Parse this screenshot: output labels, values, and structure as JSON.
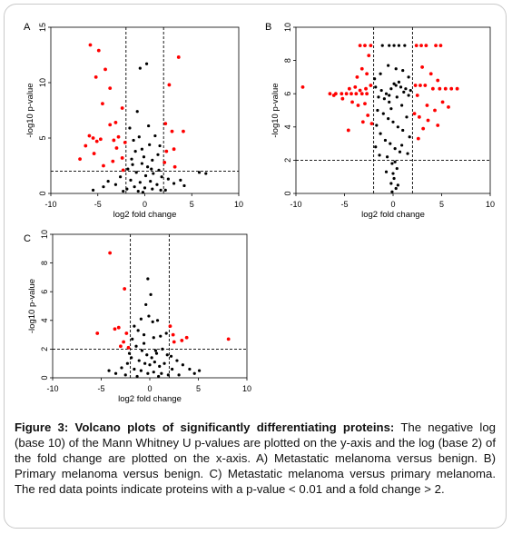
{
  "figure": {
    "caption_title": "Figure 3: Volcano plots of significantly differentiating proteins:",
    "caption_body": " The negative log (base 10) of the Mann Whitney U p-values are plotted on the y-axis and the log (base 2) of the fold change are plotted on the x-axis. A) Metastatic melanoma versus benign. B) Primary melanoma versus benign. C) Metastatic melanoma versus primary melanoma. The red data points indicate proteins with a p-value < 0.01 and a fold change > 2.",
    "colors": {
      "significant": "#ff0000",
      "other": "#000000",
      "threshold": "#000000"
    }
  },
  "chart_data": [
    {
      "type": "scatter",
      "panel_label": "A",
      "xlabel": "log2 fold change",
      "ylabel": "-log10 p-value",
      "xlim": [
        -10,
        10
      ],
      "ylim": [
        0,
        15
      ],
      "xticks": [
        -10,
        -5,
        0,
        5,
        10
      ],
      "yticks": [
        0,
        5,
        10,
        15
      ],
      "thresholds": {
        "x": [
          -2,
          2
        ],
        "y": 2
      },
      "significant": [
        [
          -5.8,
          13.4
        ],
        [
          -5.2,
          10.5
        ],
        [
          -4.9,
          12.9
        ],
        [
          -4.2,
          11.2
        ],
        [
          -4.5,
          8.1
        ],
        [
          -3.7,
          9.5
        ],
        [
          3.6,
          12.3
        ],
        [
          2.6,
          9.8
        ],
        [
          -5.9,
          5.2
        ],
        [
          -5.5,
          5.0
        ],
        [
          -6.3,
          4.3
        ],
        [
          -6.9,
          3.1
        ],
        [
          -5.1,
          4.7
        ],
        [
          -4.7,
          4.9
        ],
        [
          -3.7,
          6.2
        ],
        [
          -3.1,
          6.4
        ],
        [
          -3.3,
          4.8
        ],
        [
          -2.4,
          7.7
        ],
        [
          -2.8,
          5.1
        ],
        [
          -4.4,
          2.5
        ],
        [
          -3.4,
          2.9
        ],
        [
          -2.4,
          3.2
        ],
        [
          -2.1,
          4.6
        ],
        [
          2.2,
          6.3
        ],
        [
          2.9,
          5.6
        ],
        [
          4.1,
          5.6
        ],
        [
          2.3,
          3.8
        ],
        [
          3.1,
          4.0
        ],
        [
          2.1,
          2.8
        ],
        [
          3.2,
          2.4
        ],
        [
          -2.3,
          2.1
        ],
        [
          -5.4,
          3.6
        ],
        [
          -3.0,
          4.1
        ]
      ],
      "other": [
        [
          -1.6,
          5.9
        ],
        [
          -0.8,
          7.4
        ],
        [
          -0.5,
          11.3
        ],
        [
          0.2,
          11.7
        ],
        [
          -1.2,
          4.8
        ],
        [
          -0.6,
          5.1
        ],
        [
          0.5,
          4.4
        ],
        [
          1.1,
          5.2
        ],
        [
          1.4,
          3.5
        ],
        [
          -1.4,
          3.1
        ],
        [
          0.8,
          3.0
        ],
        [
          -0.3,
          2.7
        ],
        [
          0.3,
          2.4
        ],
        [
          1.5,
          2.1
        ],
        [
          -1.8,
          2.2
        ],
        [
          -0.9,
          1.9
        ],
        [
          0.1,
          1.6
        ],
        [
          0.9,
          1.8
        ],
        [
          1.8,
          1.5
        ],
        [
          -1.5,
          1.2
        ],
        [
          -0.5,
          1.0
        ],
        [
          0.6,
          1.1
        ],
        [
          1.3,
          0.8
        ],
        [
          -1.1,
          0.6
        ],
        [
          0.0,
          0.5
        ],
        [
          0.8,
          0.4
        ],
        [
          1.7,
          0.3
        ],
        [
          -0.7,
          0.2
        ],
        [
          -1.9,
          0.4
        ],
        [
          -0.2,
          0.1
        ],
        [
          2.5,
          1.3
        ],
        [
          3.1,
          0.9
        ],
        [
          3.8,
          1.2
        ],
        [
          4.2,
          0.7
        ],
        [
          5.8,
          1.9
        ],
        [
          6.5,
          1.8
        ],
        [
          -2.6,
          1.5
        ],
        [
          -3.1,
          0.8
        ],
        [
          -3.9,
          1.1
        ],
        [
          -4.4,
          0.6
        ],
        [
          -5.5,
          0.3
        ],
        [
          -2.3,
          0.2
        ],
        [
          2.2,
          0.3
        ],
        [
          -1.0,
          3.8
        ],
        [
          0.4,
          6.1
        ],
        [
          -0.3,
          4.0
        ],
        [
          1.6,
          4.3
        ],
        [
          -1.3,
          2.6
        ],
        [
          0.7,
          2.2
        ],
        [
          -0.1,
          3.3
        ]
      ]
    },
    {
      "type": "scatter",
      "panel_label": "B",
      "xlabel": "log2 fold change",
      "ylabel": "-log10 p-value",
      "xlim": [
        -10,
        10
      ],
      "ylim": [
        0,
        10
      ],
      "xticks": [
        -10,
        -5,
        0,
        5,
        10
      ],
      "yticks": [
        0,
        2,
        4,
        6,
        8,
        10
      ],
      "thresholds": {
        "x": [
          -2,
          2
        ],
        "y": 2
      },
      "significant": [
        [
          -9.3,
          6.4
        ],
        [
          -6.5,
          6.0
        ],
        [
          -5.9,
          6.0
        ],
        [
          -5.3,
          6.0
        ],
        [
          -4.8,
          6.0
        ],
        [
          -4.3,
          6.0
        ],
        [
          -3.8,
          6.0
        ],
        [
          -3.2,
          6.0
        ],
        [
          -2.7,
          6.0
        ],
        [
          -4.5,
          6.3
        ],
        [
          -3.9,
          6.4
        ],
        [
          -3.4,
          6.2
        ],
        [
          -2.8,
          6.3
        ],
        [
          -2.3,
          6.5
        ],
        [
          -3.6,
          5.3
        ],
        [
          -2.9,
          5.4
        ],
        [
          -4.2,
          5.5
        ],
        [
          -2.6,
          4.7
        ],
        [
          -3.1,
          4.3
        ],
        [
          -4.6,
          3.8
        ],
        [
          -2.2,
          4.2
        ],
        [
          -3.2,
          7.5
        ],
        [
          -2.7,
          7.2
        ],
        [
          -3.7,
          7.0
        ],
        [
          -2.5,
          8.3
        ],
        [
          -3.4,
          8.9
        ],
        [
          -2.9,
          8.9
        ],
        [
          -2.3,
          8.9
        ],
        [
          2.4,
          8.9
        ],
        [
          2.9,
          8.9
        ],
        [
          3.4,
          8.9
        ],
        [
          4.4,
          8.9
        ],
        [
          4.9,
          8.9
        ],
        [
          2.3,
          6.5
        ],
        [
          2.8,
          6.5
        ],
        [
          3.3,
          6.5
        ],
        [
          4.1,
          6.3
        ],
        [
          4.8,
          6.3
        ],
        [
          5.4,
          6.3
        ],
        [
          6.0,
          6.3
        ],
        [
          6.6,
          6.3
        ],
        [
          3.0,
          7.6
        ],
        [
          3.9,
          7.2
        ],
        [
          4.6,
          6.8
        ],
        [
          2.5,
          5.9
        ],
        [
          3.5,
          5.3
        ],
        [
          4.3,
          5.0
        ],
        [
          5.1,
          5.5
        ],
        [
          2.7,
          4.6
        ],
        [
          3.6,
          4.4
        ],
        [
          4.6,
          4.1
        ],
        [
          2.2,
          4.8
        ],
        [
          2.6,
          3.3
        ],
        [
          3.1,
          3.9
        ],
        [
          5.7,
          5.2
        ],
        [
          -5.2,
          5.7
        ],
        [
          -6.1,
          5.9
        ]
      ],
      "other": [
        [
          -1.8,
          6.4
        ],
        [
          -1.2,
          6.2
        ],
        [
          -0.7,
          6.0
        ],
        [
          -0.2,
          6.3
        ],
        [
          0.3,
          6.5
        ],
        [
          0.8,
          6.4
        ],
        [
          1.3,
          6.3
        ],
        [
          1.8,
          6.2
        ],
        [
          -1.5,
          5.8
        ],
        [
          -0.9,
          5.7
        ],
        [
          -0.4,
          5.5
        ],
        [
          0.1,
          6.6
        ],
        [
          0.6,
          6.7
        ],
        [
          1.1,
          6.1
        ],
        [
          1.6,
          5.9
        ],
        [
          -1.6,
          5.0
        ],
        [
          -1.0,
          4.8
        ],
        [
          -0.5,
          4.5
        ],
        [
          0.0,
          4.3
        ],
        [
          0.5,
          4.0
        ],
        [
          1.0,
          3.8
        ],
        [
          -1.3,
          3.6
        ],
        [
          -0.8,
          3.2
        ],
        [
          -0.3,
          3.0
        ],
        [
          0.2,
          2.7
        ],
        [
          0.7,
          2.5
        ],
        [
          -0.6,
          2.2
        ],
        [
          -0.1,
          1.8
        ],
        [
          0.4,
          1.5
        ],
        [
          0.0,
          1.2
        ],
        [
          0.1,
          0.9
        ],
        [
          -0.2,
          0.6
        ],
        [
          0.3,
          0.3
        ],
        [
          -0.1,
          0.1
        ],
        [
          0.2,
          1.9
        ],
        [
          -0.4,
          8.9
        ],
        [
          0.1,
          8.9
        ],
        [
          0.6,
          8.9
        ],
        [
          -1.1,
          8.9
        ],
        [
          1.2,
          8.9
        ],
        [
          -0.5,
          7.7
        ],
        [
          0.3,
          7.5
        ],
        [
          -1.3,
          7.2
        ],
        [
          1.0,
          7.4
        ],
        [
          1.6,
          7.0
        ],
        [
          -1.9,
          6.9
        ],
        [
          0.9,
          5.3
        ],
        [
          -0.2,
          5.1
        ],
        [
          1.4,
          4.6
        ],
        [
          -1.7,
          4.1
        ],
        [
          1.7,
          3.4
        ],
        [
          -1.8,
          2.8
        ],
        [
          0.9,
          2.9
        ],
        [
          -1.4,
          2.3
        ],
        [
          1.5,
          2.4
        ],
        [
          -0.7,
          1.3
        ],
        [
          0.5,
          0.5
        ],
        [
          -0.4,
          5.9
        ],
        [
          0.4,
          5.8
        ]
      ]
    },
    {
      "type": "scatter",
      "panel_label": "C",
      "xlabel": "log2 fold change",
      "ylabel": "-log10 p-value",
      "xlim": [
        -10,
        10
      ],
      "ylim": [
        0,
        10
      ],
      "xticks": [
        -10,
        -5,
        0,
        5,
        10
      ],
      "yticks": [
        0,
        2,
        4,
        6,
        8,
        10
      ],
      "thresholds": {
        "x": [
          -2,
          2
        ],
        "y": 2
      },
      "significant": [
        [
          -4.1,
          8.7
        ],
        [
          -2.6,
          6.2
        ],
        [
          -5.4,
          3.1
        ],
        [
          -3.6,
          3.4
        ],
        [
          -3.2,
          3.5
        ],
        [
          -2.4,
          3.1
        ],
        [
          -2.7,
          2.5
        ],
        [
          -2.2,
          2.1
        ],
        [
          2.1,
          3.6
        ],
        [
          2.4,
          3.0
        ],
        [
          2.5,
          2.5
        ],
        [
          3.3,
          2.6
        ],
        [
          3.8,
          2.8
        ],
        [
          8.1,
          2.7
        ],
        [
          -3.0,
          2.2
        ]
      ],
      "other": [
        [
          -0.2,
          6.9
        ],
        [
          0.1,
          5.8
        ],
        [
          -0.4,
          5.1
        ],
        [
          -0.1,
          4.3
        ],
        [
          0.3,
          3.9
        ],
        [
          -0.9,
          4.1
        ],
        [
          0.8,
          4.0
        ],
        [
          -1.6,
          3.6
        ],
        [
          -1.2,
          3.3
        ],
        [
          -0.6,
          3.0
        ],
        [
          0.4,
          2.8
        ],
        [
          1.1,
          2.9
        ],
        [
          1.7,
          3.1
        ],
        [
          -1.8,
          2.7
        ],
        [
          -1.4,
          2.2
        ],
        [
          -0.8,
          1.9
        ],
        [
          -0.3,
          1.6
        ],
        [
          0.2,
          1.4
        ],
        [
          0.7,
          1.7
        ],
        [
          1.3,
          2.0
        ],
        [
          1.8,
          1.6
        ],
        [
          -1.9,
          1.4
        ],
        [
          -1.1,
          1.2
        ],
        [
          -0.5,
          1.0
        ],
        [
          0.0,
          0.9
        ],
        [
          0.5,
          1.1
        ],
        [
          1.0,
          0.8
        ],
        [
          1.5,
          1.0
        ],
        [
          -2.3,
          1.0
        ],
        [
          -2.9,
          0.7
        ],
        [
          -3.5,
          0.3
        ],
        [
          -4.2,
          0.5
        ],
        [
          -1.6,
          0.6
        ],
        [
          -0.9,
          0.5
        ],
        [
          -0.2,
          0.3
        ],
        [
          0.4,
          0.4
        ],
        [
          1.2,
          0.3
        ],
        [
          2.3,
          0.6
        ],
        [
          2.8,
          1.2
        ],
        [
          3.4,
          0.9
        ],
        [
          4.1,
          0.6
        ],
        [
          4.6,
          0.3
        ],
        [
          5.1,
          0.5
        ],
        [
          3.0,
          0.2
        ],
        [
          -2.5,
          0.2
        ],
        [
          1.9,
          0.2
        ],
        [
          0.9,
          0.1
        ],
        [
          -1.3,
          0.1
        ],
        [
          0.6,
          1.9
        ],
        [
          -0.6,
          2.4
        ],
        [
          2.2,
          1.5
        ],
        [
          -2.1,
          1.7
        ]
      ]
    }
  ]
}
